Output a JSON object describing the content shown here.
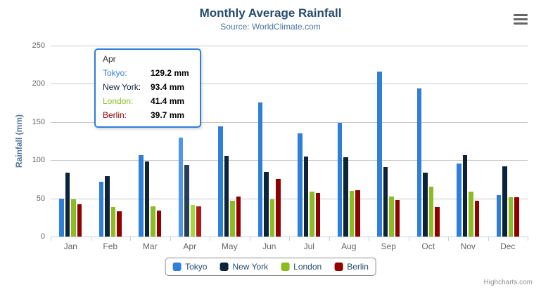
{
  "header": {
    "title": "Monthly Average Rainfall",
    "subtitle": "Source: WorldClimate.com"
  },
  "credits": {
    "label": "Highcharts.com"
  },
  "colors": {
    "title_text": "#274b6d",
    "subtitle_text": "#4d759e",
    "axis_title_text": "#4d759e",
    "tick_label_text": "#666666",
    "grid_line": "#c8c8c8",
    "axis_line": "#c0d0e0",
    "legend_border": "#909090",
    "legend_text": "#274b6d",
    "credits_text": "#909090",
    "tooltip_border": "#2f7ed8",
    "hamburger_icon": "#666666"
  },
  "chart_data": {
    "type": "bar",
    "title": "Monthly Average Rainfall",
    "subtitle": "Source: WorldClimate.com",
    "xlabel": "",
    "ylabel": "Rainfall (mm)",
    "ylim": [
      0,
      250
    ],
    "yticks": [
      0,
      50,
      100,
      150,
      200,
      250
    ],
    "grid": true,
    "legend_position": "bottom-center",
    "categories": [
      "Jan",
      "Feb",
      "Mar",
      "Apr",
      "May",
      "Jun",
      "Jul",
      "Aug",
      "Sep",
      "Oct",
      "Nov",
      "Dec"
    ],
    "series": [
      {
        "name": "Tokyo",
        "color": "#2f7ed8",
        "hover_color": "#4f97ee",
        "values": [
          49.9,
          71.5,
          106.4,
          129.2,
          144.0,
          176.0,
          135.6,
          148.5,
          216.4,
          194.1,
          95.6,
          54.4
        ]
      },
      {
        "name": "New York",
        "color": "#0d233a",
        "hover_color": "#273d54",
        "values": [
          83.6,
          78.8,
          98.5,
          93.4,
          106.0,
          84.5,
          105.0,
          104.3,
          91.2,
          83.5,
          106.6,
          92.3
        ]
      },
      {
        "name": "London",
        "color": "#8bbc21",
        "hover_color": "#a5d63b",
        "values": [
          48.9,
          38.8,
          39.3,
          41.4,
          47.0,
          48.3,
          59.0,
          59.6,
          52.4,
          65.2,
          59.3,
          51.2
        ]
      },
      {
        "name": "Berlin",
        "color": "#910000",
        "hover_color": "#ab1a1a",
        "values": [
          42.4,
          33.2,
          34.5,
          39.7,
          52.6,
          75.5,
          57.4,
          60.4,
          47.6,
          39.1,
          46.8,
          51.1
        ]
      }
    ],
    "hovered_category": "Apr",
    "hovered_category_index": 3
  },
  "tooltip": {
    "header": "Apr",
    "unit": "mm",
    "rows": [
      {
        "name": "Tokyo",
        "value": "129.2",
        "color": "#2f7ed8"
      },
      {
        "name": "New York",
        "value": "93.4",
        "color": "#0d233a"
      },
      {
        "name": "London",
        "value": "41.4",
        "color": "#8bbc21"
      },
      {
        "name": "Berlin",
        "value": "39.7",
        "color": "#910000"
      }
    ]
  }
}
